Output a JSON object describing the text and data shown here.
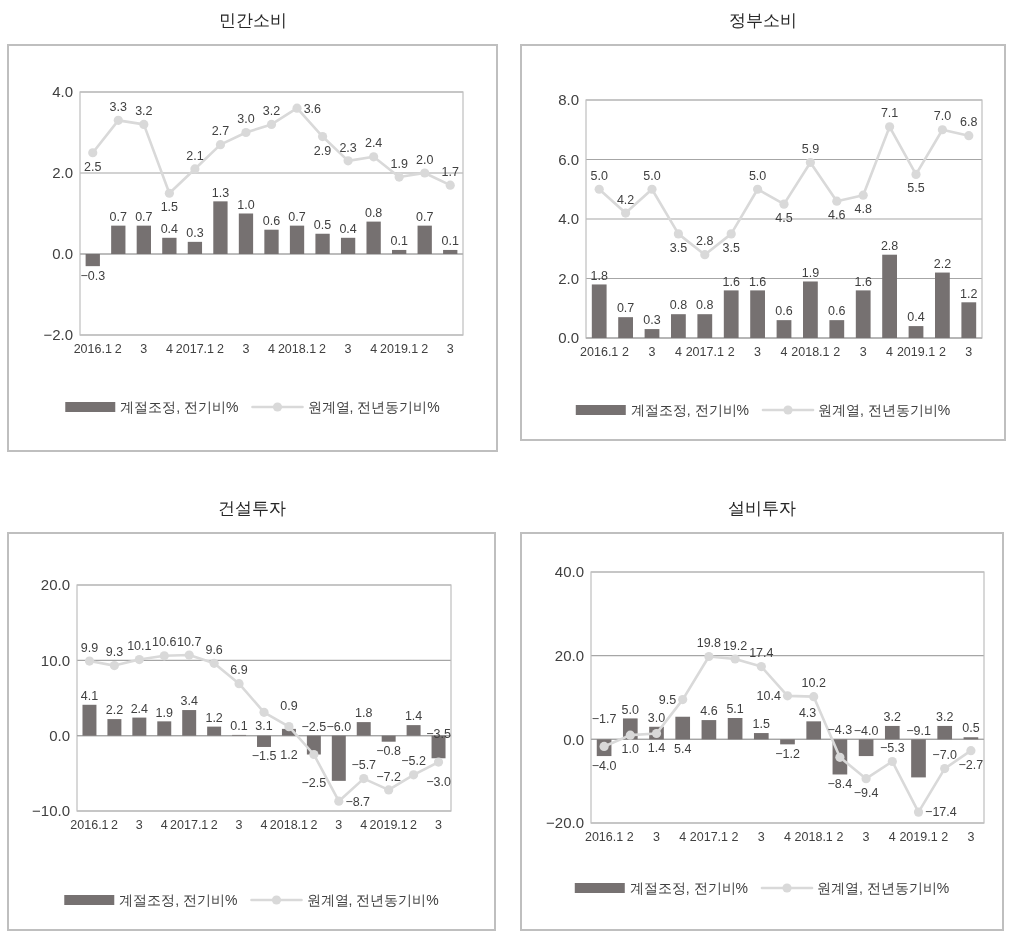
{
  "chart_data": [
    {
      "type": "bar",
      "title": "민간소비",
      "categories": [
        "2016.1",
        "2",
        "3",
        "4",
        "2017.1",
        "2",
        "3",
        "4",
        "2018.1",
        "2",
        "3",
        "4",
        "2019.1",
        "2",
        "3"
      ],
      "series": [
        {
          "name": "계절조정, 전기비%",
          "color": "#767171",
          "values": [
            -0.3,
            0.7,
            0.7,
            0.4,
            0.3,
            1.3,
            1.0,
            0.6,
            0.7,
            0.5,
            0.4,
            0.8,
            0.1,
            0.7,
            0.1
          ],
          "value_labels": [
            "−0.3",
            "0.7",
            "0.7",
            "0.4",
            "0.3",
            "1.3",
            "1.0",
            "0.6",
            "0.7",
            "0.5",
            "0.4",
            "0.8",
            "0.1",
            "0.7",
            "0.1"
          ]
        },
        {
          "name": "원계열, 전년동기비%",
          "type": "line",
          "color": "#d9d9d9",
          "marker": "circle",
          "values": [
            2.5,
            3.3,
            3.2,
            1.5,
            2.1,
            2.7,
            3.0,
            3.2,
            3.6,
            2.9,
            2.3,
            2.4,
            1.9,
            2.0,
            1.7
          ],
          "value_labels": [
            "2.5",
            "3.3",
            "3.2",
            "1.5",
            "2.1",
            "2.7",
            "3.0",
            "3.2",
            "3.6",
            "2.9",
            "2.3",
            "2.4",
            "1.9",
            "2.0",
            "1.7"
          ]
        }
      ],
      "ylim": [
        -2,
        4
      ],
      "yticks": [
        {
          "value": -2,
          "label": "−2.0"
        },
        {
          "value": 0,
          "label": "0.0"
        },
        {
          "value": 2,
          "label": "2.0"
        },
        {
          "value": 4,
          "label": "4.0"
        }
      ],
      "grid": "y",
      "legend": "bottom"
    },
    {
      "type": "bar",
      "title": "정부소비",
      "categories": [
        "2016.1",
        "2",
        "3",
        "4",
        "2017.1",
        "2",
        "3",
        "4",
        "2018.1",
        "2",
        "3",
        "4",
        "2019.1",
        "2",
        "3"
      ],
      "series": [
        {
          "name": "계절조정, 전기비%",
          "color": "#767171",
          "values": [
            1.8,
            0.7,
            0.3,
            0.8,
            0.8,
            1.6,
            1.6,
            0.6,
            1.9,
            0.6,
            1.6,
            2.8,
            0.4,
            2.2,
            1.2
          ],
          "value_labels": [
            "1.8",
            "0.7",
            "0.3",
            "0.8",
            "0.8",
            "1.6",
            "1.6",
            "0.6",
            "1.9",
            "0.6",
            "1.6",
            "2.8",
            "0.4",
            "2.2",
            "1.2"
          ]
        },
        {
          "name": "원계열, 전년동기비%",
          "type": "line",
          "color": "#d9d9d9",
          "marker": "circle",
          "values": [
            5.0,
            4.2,
            5.0,
            3.5,
            2.8,
            3.5,
            5.0,
            4.5,
            5.9,
            4.6,
            4.8,
            7.1,
            5.5,
            7.0,
            6.8
          ],
          "value_labels": [
            "5.0",
            "4.2",
            "5.0",
            "3.5",
            "2.8",
            "3.5",
            "5.0",
            "4.5",
            "5.9",
            "4.6",
            "4.8",
            "7.1",
            "5.5",
            "7.0",
            "6.8"
          ]
        }
      ],
      "ylim": [
        0,
        8
      ],
      "yticks": [
        {
          "value": 0,
          "label": "0.0"
        },
        {
          "value": 2,
          "label": "2.0"
        },
        {
          "value": 4,
          "label": "4.0"
        },
        {
          "value": 6,
          "label": "6.0"
        },
        {
          "value": 8,
          "label": "8.0"
        }
      ],
      "grid": "y",
      "legend": "bottom"
    },
    {
      "type": "bar",
      "title": "건설투자",
      "categories": [
        "2016.1",
        "2",
        "3",
        "4",
        "2017.1",
        "2",
        "3",
        "4",
        "2018.1",
        "2",
        "3",
        "4",
        "2019.1",
        "2",
        "3"
      ],
      "series": [
        {
          "name": "계절조정, 전기비%",
          "color": "#767171",
          "values": [
            4.1,
            2.2,
            2.4,
            1.9,
            3.4,
            1.2,
            0.1,
            -1.5,
            0.9,
            -2.5,
            -6.0,
            1.8,
            -0.8,
            1.4,
            -3.0
          ],
          "value_labels": [
            "4.1",
            "2.2",
            "2.4",
            "1.9",
            "3.4",
            "1.2",
            "0.1",
            "−1.5",
            "0.9",
            "−2.5",
            "−6.0",
            "1.8",
            "−0.8",
            "1.4",
            "−3.0"
          ]
        },
        {
          "name": "원계열, 전년동기비%",
          "type": "line",
          "color": "#d9d9d9",
          "marker": "circle",
          "values": [
            9.9,
            9.3,
            10.1,
            10.6,
            10.7,
            9.6,
            6.9,
            3.1,
            1.2,
            -2.5,
            -8.7,
            -5.7,
            -7.2,
            -5.2,
            -3.5
          ],
          "value_labels": [
            "9.9",
            "9.3",
            "10.1",
            "10.6",
            "10.7",
            "9.6",
            "6.9",
            "3.1",
            "1.2",
            "−2.5",
            "−8.7",
            "−5.7",
            "−7.2",
            "−5.2",
            "−3.5"
          ]
        }
      ],
      "ylim": [
        -10,
        20
      ],
      "yticks": [
        {
          "value": -10,
          "label": "−10.0"
        },
        {
          "value": 0,
          "label": "0.0"
        },
        {
          "value": 10,
          "label": "10.0"
        },
        {
          "value": 20,
          "label": "20.0"
        }
      ],
      "grid": "y",
      "legend": "bottom"
    },
    {
      "type": "bar",
      "title": "설비투자",
      "categories": [
        "2016.1",
        "2",
        "3",
        "4",
        "2017.1",
        "2",
        "3",
        "4",
        "2018.1",
        "2",
        "3",
        "4",
        "2019.1",
        "2",
        "3"
      ],
      "series": [
        {
          "name": "계절조정, 전기비%",
          "color": "#767171",
          "values": [
            -4.0,
            5.0,
            3.0,
            5.4,
            4.6,
            5.1,
            1.5,
            -1.2,
            4.3,
            -8.4,
            -4.0,
            3.2,
            -9.1,
            3.2,
            0.5
          ],
          "value_labels": [
            "−4.0",
            "5.0",
            "3.0",
            "5.4",
            "4.6",
            "5.1",
            "1.5",
            "−1.2",
            "4.3",
            "−8.4",
            "−4.0",
            "3.2",
            "−9.1",
            "3.2",
            "0.5"
          ]
        },
        {
          "name": "원계열, 전년동기비%",
          "type": "line",
          "color": "#d9d9d9",
          "marker": "circle",
          "values": [
            -1.7,
            1.0,
            1.4,
            9.5,
            19.8,
            19.2,
            17.4,
            10.4,
            10.2,
            -4.3,
            -9.4,
            -5.3,
            -17.4,
            -7.0,
            -2.7
          ],
          "value_labels": [
            "−1.7",
            "1.0",
            "1.4",
            "9.5",
            "19.8",
            "19.2",
            "17.4",
            "10.4",
            "10.2",
            "−4.3",
            "−9.4",
            "−5.3",
            "−17.4",
            "−7.0",
            "−2.7"
          ]
        }
      ],
      "ylim": [
        -20,
        40
      ],
      "yticks": [
        {
          "value": -20,
          "label": "−20.0"
        },
        {
          "value": 0,
          "label": "0.0"
        },
        {
          "value": 20,
          "label": "20.0"
        },
        {
          "value": 40,
          "label": "40.0"
        }
      ],
      "grid": "y",
      "legend": "bottom"
    }
  ]
}
